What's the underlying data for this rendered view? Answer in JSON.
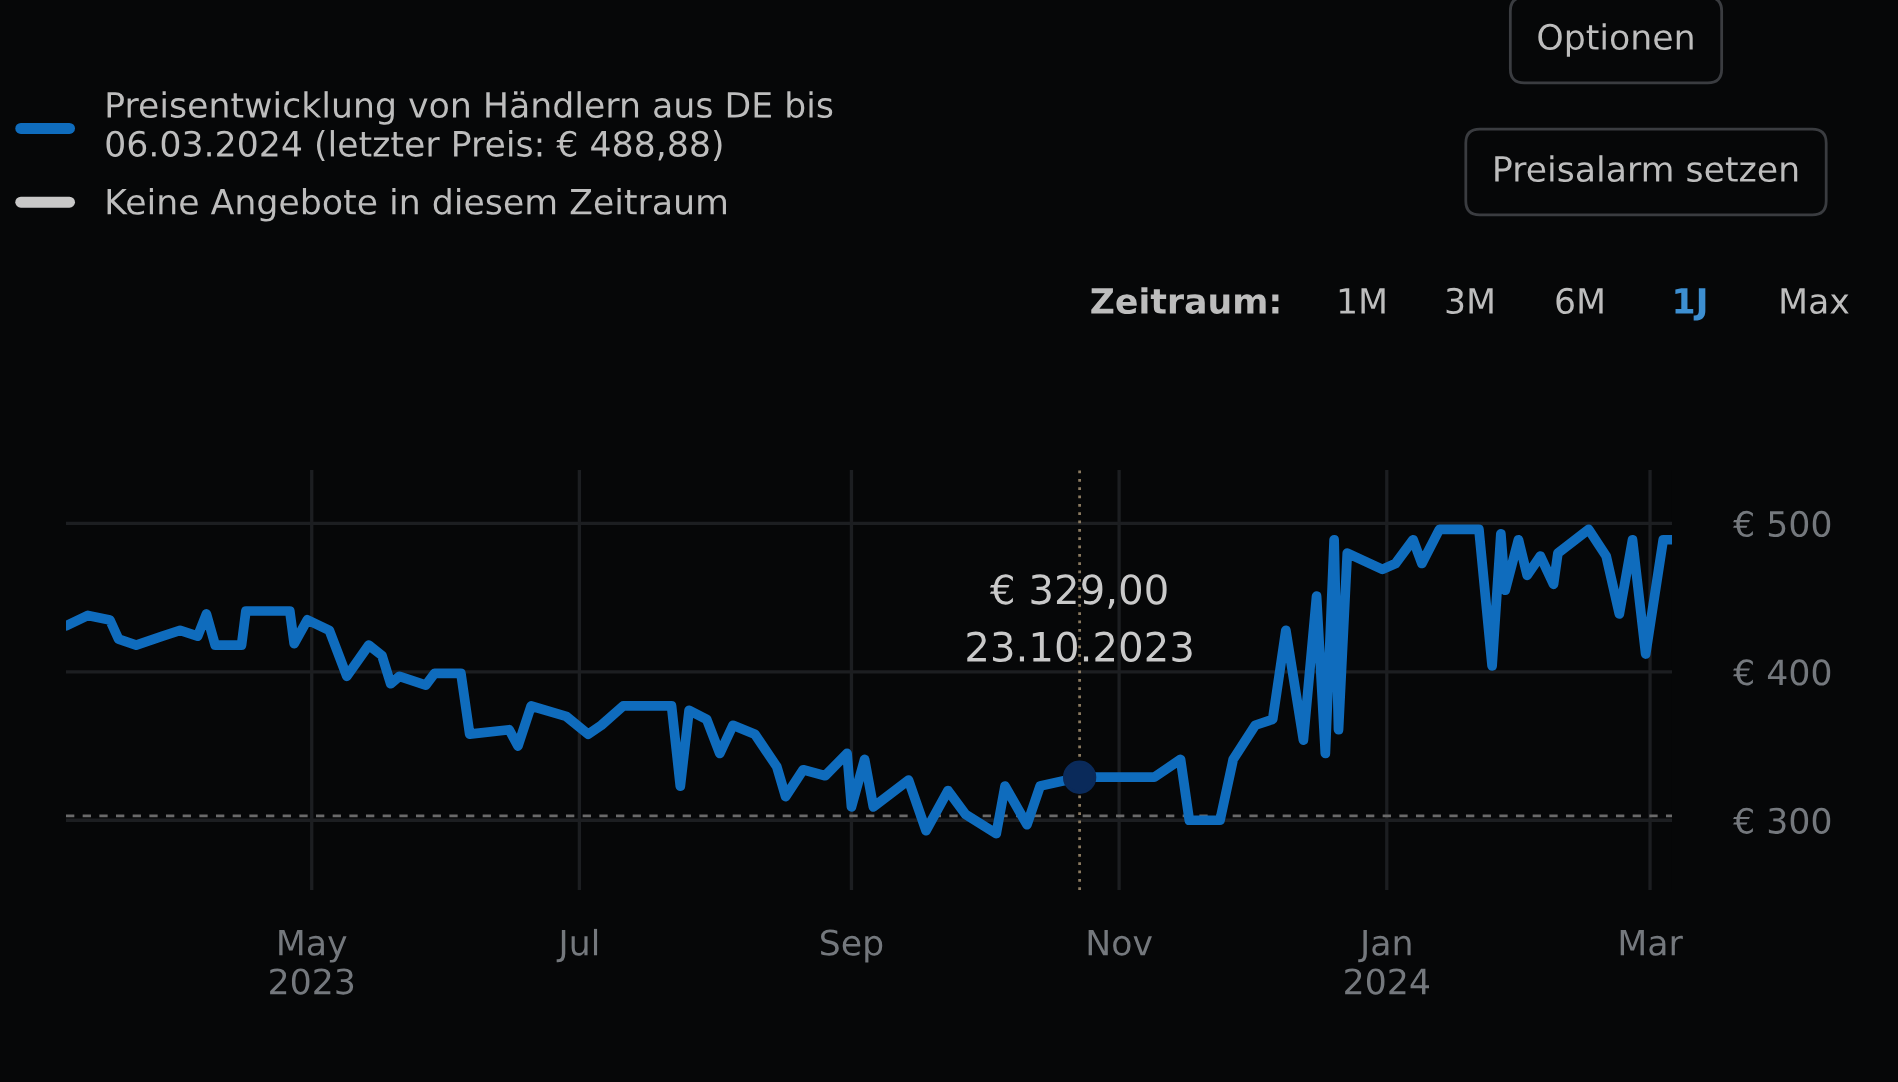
{
  "chart_data": {
    "type": "line",
    "series": [
      {
        "name": "Preisentwicklung von Händlern aus DE bis\n06.03.2024 (letzter Preis: € 488,88)",
        "color": "#0f6cbd",
        "x": [
          "2023-03-06",
          "2023-03-11",
          "2023-03-16",
          "2023-03-18",
          "2023-03-22",
          "2023-03-28",
          "2023-04-01",
          "2023-04-05",
          "2023-04-07",
          "2023-04-09",
          "2023-04-15",
          "2023-04-16",
          "2023-04-26",
          "2023-04-27",
          "2023-04-30",
          "2023-05-05",
          "2023-05-09",
          "2023-05-14",
          "2023-05-17",
          "2023-05-19",
          "2023-05-21",
          "2023-05-27",
          "2023-05-29",
          "2023-06-04",
          "2023-06-06",
          "2023-06-15",
          "2023-06-17",
          "2023-06-20",
          "2023-06-28",
          "2023-07-03",
          "2023-07-06",
          "2023-07-11",
          "2023-07-22",
          "2023-07-24",
          "2023-07-26",
          "2023-07-30",
          "2023-08-02",
          "2023-08-05",
          "2023-08-10",
          "2023-08-15",
          "2023-08-17",
          "2023-08-21",
          "2023-08-26",
          "2023-08-31",
          "2023-09-01",
          "2023-09-04",
          "2023-09-06",
          "2023-09-14",
          "2023-09-18",
          "2023-09-23",
          "2023-09-27",
          "2023-10-04",
          "2023-10-06",
          "2023-10-11",
          "2023-10-14",
          "2023-10-23",
          "2023-11-09",
          "2023-11-15",
          "2023-11-17",
          "2023-11-24",
          "2023-11-27",
          "2023-12-02",
          "2023-12-06",
          "2023-12-09",
          "2023-12-13",
          "2023-12-16",
          "2023-12-18",
          "2023-12-20",
          "2023-12-21",
          "2023-12-23",
          "2023-12-31",
          "2024-01-03",
          "2024-01-07",
          "2024-01-09",
          "2024-01-13",
          "2024-01-22",
          "2024-01-25",
          "2024-01-27",
          "2024-01-28",
          "2024-01-31",
          "2024-02-02",
          "2024-02-05",
          "2024-02-08",
          "2024-02-09",
          "2024-02-16",
          "2024-02-20",
          "2024-02-23",
          "2024-02-26",
          "2024-02-29",
          "2024-03-04",
          "2024-03-06"
        ],
        "values": [
          431,
          438,
          435,
          422,
          418,
          424,
          428,
          424,
          439,
          418,
          418,
          441,
          441,
          419,
          435,
          428,
          397,
          418,
          411,
          392,
          397,
          391,
          399,
          399,
          358,
          361,
          350,
          377,
          370,
          358,
          364,
          377,
          377,
          323,
          374,
          368,
          345,
          364,
          358,
          336,
          316,
          334,
          330,
          345,
          309,
          341,
          309,
          327,
          293,
          320,
          304,
          291,
          323,
          297,
          323,
          329,
          329,
          341,
          300,
          300,
          341,
          364,
          368,
          428,
          354,
          451,
          345,
          489,
          361,
          480,
          469,
          473,
          489,
          473,
          496,
          496,
          404,
          493,
          455,
          489,
          465,
          478,
          459,
          480,
          496,
          478,
          439,
          489,
          412,
          489,
          489
        ]
      },
      {
        "name": "Keine Angebote in diesem Zeitraum",
        "color": "#c8c8c8"
      }
    ],
    "xlim": [
      "2023-03-06",
      "2024-03-06"
    ],
    "xticks": [
      {
        "value": "2023-05-01",
        "label": "May\n2023"
      },
      {
        "value": "2023-07-01",
        "label": "Jul"
      },
      {
        "value": "2023-09-01",
        "label": "Sep"
      },
      {
        "value": "2023-11-01",
        "label": "Nov"
      },
      {
        "value": "2024-01-01",
        "label": "Jan\n2024"
      },
      {
        "value": "2024-03-01",
        "label": "Mar"
      }
    ],
    "ylim": [
      253,
      536
    ],
    "yticks": [
      {
        "value": 300,
        "label": "€ 300"
      },
      {
        "value": 400,
        "label": "€ 400"
      },
      {
        "value": 500,
        "label": "€ 500"
      }
    ],
    "grid": true,
    "legend": "top left",
    "ref_lines": [
      {
        "axis": "y",
        "value": 303,
        "color": "#6a6a6a",
        "line_style": "dashed"
      },
      {
        "axis": "x",
        "value": "2023-10-23",
        "color": "#8a7a60",
        "line_style": "dotted"
      }
    ],
    "annotations": [
      {
        "text": "€ 329,00\n23.10.2023",
        "x": "2023-10-23",
        "y": 329
      },
      "Optionen",
      "Preisalarm setzen",
      "Zeitraum:",
      "1M",
      "3M",
      "6M",
      "1J",
      "Max"
    ]
  }
}
